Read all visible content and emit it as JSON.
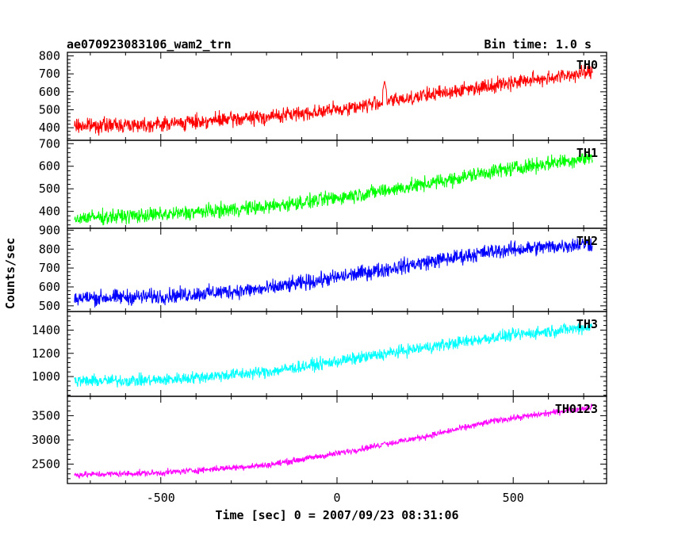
{
  "header": {
    "title": "ae070923083106_wam2_trn",
    "bin_time": "Bin time: 1.0 s"
  },
  "chart_data": {
    "type": "line",
    "title": "ae070923083106_wam2_trn",
    "subtitle": "Bin time: 1.0 s",
    "xlabel": "Time [sec] 0 = 2007/09/23 08:31:06",
    "ylabel": "Counts/sec",
    "xlim": [
      -765,
      765
    ],
    "xticks": [
      -500,
      0,
      500
    ],
    "x_range": [
      -745,
      725
    ],
    "panels": [
      {
        "name": "TH0",
        "color": "#ff0000",
        "ylim": [
          330,
          820
        ],
        "yticks": [
          400,
          500,
          600,
          700,
          800
        ],
        "trend": [
          [
            -745,
            410
          ],
          [
            -500,
            420
          ],
          [
            -200,
            460
          ],
          [
            0,
            500
          ],
          [
            250,
            580
          ],
          [
            450,
            640
          ],
          [
            725,
            710
          ]
        ],
        "noise": 35,
        "spikes": [
          [
            135,
            660
          ]
        ]
      },
      {
        "name": "TH1",
        "color": "#00ff00",
        "ylim": [
          325,
          715
        ],
        "yticks": [
          400,
          500,
          600,
          700
        ],
        "trend": [
          [
            -745,
            370
          ],
          [
            -500,
            385
          ],
          [
            -200,
            420
          ],
          [
            0,
            460
          ],
          [
            250,
            520
          ],
          [
            450,
            580
          ],
          [
            725,
            640
          ]
        ],
        "noise": 28,
        "spikes": []
      },
      {
        "name": "TH2",
        "color": "#0000ff",
        "ylim": [
          470,
          910
        ],
        "yticks": [
          500,
          600,
          700,
          800,
          900
        ],
        "trend": [
          [
            -745,
            540
          ],
          [
            -500,
            550
          ],
          [
            -200,
            590
          ],
          [
            0,
            650
          ],
          [
            250,
            730
          ],
          [
            450,
            790
          ],
          [
            725,
            830
          ]
        ],
        "noise": 35,
        "spikes": []
      },
      {
        "name": "TH3",
        "color": "#00ffff",
        "ylim": [
          830,
          1560
        ],
        "yticks": [
          1000,
          1200,
          1400
        ],
        "trend": [
          [
            -745,
            960
          ],
          [
            -500,
            970
          ],
          [
            -200,
            1040
          ],
          [
            0,
            1130
          ],
          [
            250,
            1250
          ],
          [
            450,
            1340
          ],
          [
            725,
            1430
          ]
        ],
        "noise": 45,
        "spikes": []
      },
      {
        "name": "TH0123",
        "color": "#ff00ff",
        "ylim": [
          2100,
          3900
        ],
        "yticks": [
          2500,
          3000,
          3500
        ],
        "trend": [
          [
            -745,
            2280
          ],
          [
            -500,
            2320
          ],
          [
            -200,
            2480
          ],
          [
            0,
            2720
          ],
          [
            250,
            3070
          ],
          [
            450,
            3400
          ],
          [
            725,
            3680
          ]
        ],
        "noise": 55,
        "spikes": [
          [
            135,
            2960
          ]
        ]
      }
    ]
  }
}
